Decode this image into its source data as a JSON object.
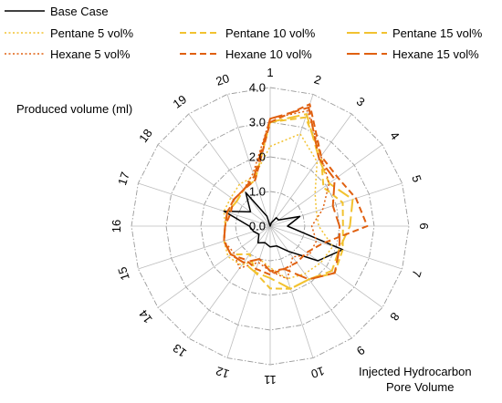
{
  "chart_data": {
    "type": "radar",
    "radial_label": "Produced volume (ml)",
    "angular_label_line1": "Injected Hydrocarbon",
    "angular_label_line2": "Pore Volume",
    "categories": [
      "1",
      "2",
      "3",
      "4",
      "5",
      "6",
      "7",
      "8",
      "9",
      "10",
      "11",
      "12",
      "13",
      "14",
      "15",
      "16",
      "17",
      "18",
      "19",
      "20"
    ],
    "rlim": [
      0,
      4.0
    ],
    "rticks": [
      {
        "value": 0.0,
        "label": "0.0"
      },
      {
        "value": 1.0,
        "label": "1.0"
      },
      {
        "value": 2.0,
        "label": "2.0"
      },
      {
        "value": 3.0,
        "label": "3.0"
      },
      {
        "value": 4.0,
        "label": "4.0"
      }
    ],
    "grid": true,
    "legend_position": "top",
    "series": [
      {
        "name": "Base Case",
        "color": "#000000",
        "dash": "solid",
        "width": 1.5,
        "values": [
          0.0,
          0.1,
          0.3,
          0.3,
          0.9,
          0.5,
          2.2,
          1.7,
          0.9,
          0.6,
          0.6,
          0.5,
          0.6,
          0.4,
          0.5,
          0.6,
          1.4,
          0.7,
          1.2,
          0.3
        ]
      },
      {
        "name": "Pentane 5 vol%",
        "color": "#F2C230",
        "dash": "dot",
        "width": 1.5,
        "values": [
          2.3,
          2.8,
          2.3,
          1.6,
          1.4,
          1.4,
          1.9,
          1.8,
          1.7,
          1.6,
          1.2,
          1.0,
          1.4,
          1.5,
          1.4,
          1.3,
          1.4,
          1.4,
          1.5,
          1.5
        ]
      },
      {
        "name": "Pentane 10 vol%",
        "color": "#F2C230",
        "dash": "dash",
        "width": 2.0,
        "values": [
          3.0,
          3.3,
          2.5,
          1.9,
          2.2,
          2.1,
          2.2,
          2.3,
          1.9,
          1.9,
          1.8,
          1.4,
          1.0,
          1.4,
          1.4,
          1.3,
          1.3,
          1.2,
          1.3,
          1.4
        ]
      },
      {
        "name": "Pentane 15 vol%",
        "color": "#F2C230",
        "dash": "longdash",
        "width": 2.0,
        "values": [
          3.0,
          3.4,
          2.4,
          2.1,
          2.5,
          2.3,
          2.1,
          2.2,
          1.9,
          1.9,
          1.5,
          1.4,
          1.3,
          1.4,
          1.4,
          1.3,
          1.3,
          1.2,
          1.3,
          1.5
        ]
      },
      {
        "name": "Hexane 5 vol%",
        "color": "#E06010",
        "dash": "dot",
        "width": 1.5,
        "values": [
          3.1,
          3.5,
          2.5,
          2.1,
          1.6,
          1.2,
          1.4,
          1.4,
          1.1,
          1.6,
          1.3,
          1.1,
          1.5,
          1.3,
          1.4,
          1.3,
          1.3,
          1.3,
          1.3,
          1.6
        ]
      },
      {
        "name": "Hexane 10 vol%",
        "color": "#E06010",
        "dash": "dash",
        "width": 2.0,
        "values": [
          3.0,
          3.7,
          2.5,
          2.4,
          2.6,
          2.8,
          1.6,
          1.3,
          1.3,
          1.3,
          1.4,
          1.3,
          1.2,
          1.4,
          1.4,
          1.3,
          1.2,
          1.3,
          1.3,
          1.4
        ]
      },
      {
        "name": "Hexane 15 vol%",
        "color": "#E06010",
        "dash": "longdash",
        "width": 2.0,
        "values": [
          3.1,
          3.6,
          2.4,
          2.3,
          1.9,
          2.0,
          2.1,
          2.3,
          1.9,
          1.3,
          1.3,
          1.0,
          1.3,
          1.4,
          1.4,
          1.3,
          1.3,
          1.3,
          1.3,
          1.5
        ]
      }
    ]
  }
}
